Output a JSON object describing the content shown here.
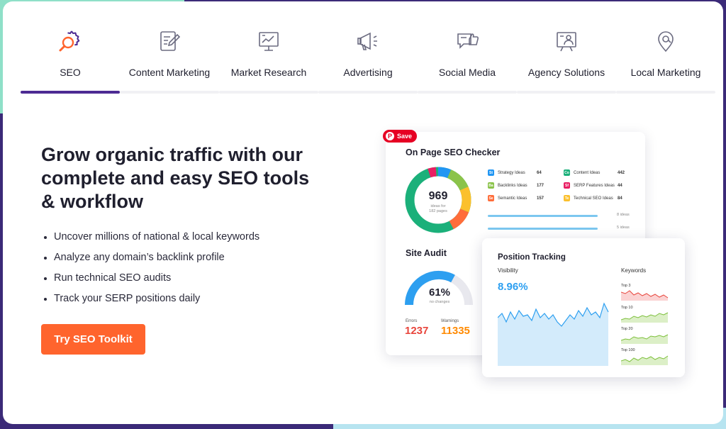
{
  "tabs": [
    {
      "label": "SEO",
      "icon": "seo-gear-magnifier-icon",
      "active": true
    },
    {
      "label": "Content Marketing",
      "icon": "document-pencil-icon",
      "active": false
    },
    {
      "label": "Market Research",
      "icon": "presentation-chart-icon",
      "active": false
    },
    {
      "label": "Advertising",
      "icon": "megaphone-icon",
      "active": false
    },
    {
      "label": "Social Media",
      "icon": "chat-thumbs-up-icon",
      "active": false
    },
    {
      "label": "Agency Solutions",
      "icon": "person-presenting-icon",
      "active": false
    },
    {
      "label": "Local Marketing",
      "icon": "location-pin-icon",
      "active": false
    }
  ],
  "hero": {
    "headline": "Grow organic traffic with our complete and easy SEO tools & workflow",
    "bullets": [
      "Uncover millions of national & local keywords",
      "Analyze any domain’s backlink profile",
      "Run technical SEO audits",
      "Track your SERP positions daily"
    ],
    "cta": "Try SEO Toolkit"
  },
  "dashboard": {
    "save_label": "Save",
    "on_page": {
      "title": "On Page SEO Checker",
      "ideas_count": "969",
      "ideas_sub_line1": "ideas for",
      "ideas_sub_line2": "182 pages",
      "legend": [
        {
          "abbr": "St",
          "name": "Strategy Ideas",
          "value": "64",
          "color": "#2196f3"
        },
        {
          "abbr": "Co",
          "name": "Content Ideas",
          "value": "442",
          "color": "#1bb07a"
        },
        {
          "abbr": "Ba",
          "name": "Backlinks Ideas",
          "value": "177",
          "color": "#8bc34a"
        },
        {
          "abbr": "Sf",
          "name": "SERP Features Ideas",
          "value": "44",
          "color": "#e91e63"
        },
        {
          "abbr": "Se",
          "name": "Semantic Ideas",
          "value": "157",
          "color": "#ff6d3a"
        },
        {
          "abbr": "Te",
          "name": "Technical SEO Ideas",
          "value": "84",
          "color": "#fbc02d"
        }
      ],
      "progress": [
        {
          "label": "8 ideas",
          "fraction": 0.9
        },
        {
          "label": "5 ideas",
          "fraction": 0.85
        }
      ]
    },
    "site_audit": {
      "title": "Site Audit",
      "percent": "61%",
      "sub": "no changes",
      "fraction": 0.61,
      "errors_label": "Errors",
      "errors_value": "1237",
      "warnings_label": "Warnings",
      "warnings_value": "11335"
    },
    "position_tracking": {
      "title": "Position Tracking",
      "visibility_label": "Visibility",
      "visibility_value": "8.96%",
      "keywords_label": "Keywords",
      "keyword_buckets": [
        "Top 3",
        "Top 10",
        "Top 20",
        "Top 100"
      ]
    },
    "colors": {
      "accent": "#4d2b93",
      "cta": "#ff642d",
      "blue": "#2d9ff0",
      "red": "#e8453c",
      "orange": "#ff8a00"
    }
  }
}
